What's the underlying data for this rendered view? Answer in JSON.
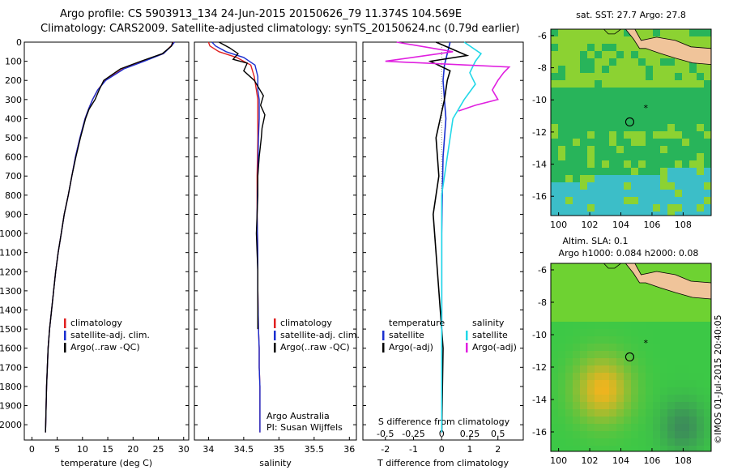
{
  "header": {
    "line1": "Argo profile: CS 5903913_134 24-Jun-2015 20150626_79 11.374S 104.569E",
    "line2": "Climatology: CARS2009. Satellite-adjusted climatology: synTS_20150624.nc (0.79d earlier)"
  },
  "colors": {
    "climatology": "#e02020",
    "satellite": "#1a2fd0",
    "argo": "#000000",
    "sal_satellite": "#22d8e8",
    "sal_argo": "#e020e0",
    "land": "#f0c49a",
    "sea_green": "#22b84a"
  },
  "credits": {
    "argo_aus": "Argo Australia",
    "pi": "PI: Susan Wijffels",
    "imos": "©IMOS 01-Jul-2015 20:40:05"
  },
  "chart_data": [
    {
      "type": "line",
      "xlabel": "temperature (deg C)",
      "ylabel": "",
      "xlim": [
        -1.5,
        31
      ],
      "ylim": [
        2080,
        0
      ],
      "xticks": [
        "0",
        "5",
        "10",
        "15",
        "20",
        "25",
        "30"
      ],
      "yticks": [
        "0",
        "100",
        "200",
        "300",
        "400",
        "500",
        "600",
        "700",
        "800",
        "900",
        "1000",
        "1100",
        "1200",
        "1300",
        "1400",
        "1500",
        "1600",
        "1700",
        "1800",
        "1900",
        "2000"
      ],
      "legend": [
        "climatology",
        "satellite-adj. clim.",
        "Argo(..raw -QC)"
      ],
      "series": [
        {
          "name": "climatology",
          "x": [
            28,
            27.5,
            26,
            22,
            18,
            14.5,
            13,
            12,
            11.2,
            10.5,
            9.5,
            8.6,
            7.9,
            7.2,
            6.4,
            5.8,
            5.2,
            4.7,
            4.3,
            3.9,
            3.5,
            3.2,
            2.9,
            2.7
          ],
          "y": [
            0,
            20,
            60,
            100,
            140,
            200,
            250,
            300,
            350,
            400,
            500,
            600,
            700,
            800,
            900,
            1000,
            1100,
            1200,
            1300,
            1400,
            1500,
            1600,
            1800,
            2040
          ]
        },
        {
          "name": "satellite-adj. clim.",
          "x": [
            28.2,
            27.6,
            26,
            22.2,
            18.2,
            14.6,
            13,
            12,
            11.2,
            10.5,
            9.5,
            8.6,
            7.9,
            7.2,
            6.4,
            5.8,
            5.2,
            4.7,
            4.3,
            3.9,
            3.5,
            3.2,
            2.9,
            2.7
          ],
          "y": [
            0,
            20,
            60,
            100,
            140,
            200,
            250,
            300,
            350,
            400,
            500,
            600,
            700,
            800,
            900,
            1000,
            1100,
            1200,
            1300,
            1400,
            1500,
            1600,
            1800,
            2040
          ]
        },
        {
          "name": "Argo(..raw -QC)",
          "x": [
            27.8,
            27.6,
            25.8,
            21.5,
            17.5,
            14.2,
            13.3,
            12.5,
            11.3,
            10.6,
            9.6,
            8.7,
            7.9,
            7.2,
            6.4,
            5.8,
            5.2,
            4.7,
            4.3,
            3.9,
            3.5,
            3.2,
            2.9,
            2.7
          ],
          "y": [
            0,
            20,
            60,
            100,
            140,
            200,
            250,
            300,
            350,
            400,
            500,
            600,
            700,
            800,
            900,
            1000,
            1100,
            1200,
            1300,
            1400,
            1500,
            1600,
            1800,
            2040
          ]
        }
      ]
    },
    {
      "type": "line",
      "xlabel": "salinity",
      "xlim": [
        33.8,
        36.1
      ],
      "ylim": [
        2080,
        0
      ],
      "xticks": [
        "34",
        "34.5",
        "35",
        "35.5",
        "36"
      ],
      "legend": [
        "climatology",
        "satellite-adj. clim.",
        "Argo(..raw -QC)"
      ],
      "series": [
        {
          "name": "climatology",
          "x": [
            34.0,
            34.02,
            34.15,
            34.4,
            34.6,
            34.65,
            34.68,
            34.7,
            34.7,
            34.7,
            34.69,
            34.69,
            34.7,
            34.7,
            34.71,
            34.72,
            34.72,
            34.73,
            34.73,
            34.73
          ],
          "y": [
            0,
            20,
            50,
            80,
            120,
            180,
            250,
            300,
            400,
            500,
            700,
            900,
            1100,
            1300,
            1500,
            1600,
            1700,
            1800,
            1900,
            2040
          ]
        },
        {
          "name": "satellite-adj. clim.",
          "x": [
            34.05,
            34.1,
            34.25,
            34.5,
            34.66,
            34.7,
            34.7,
            34.72,
            34.72,
            34.71,
            34.7,
            34.69,
            34.7,
            34.7,
            34.71,
            34.72,
            34.72,
            34.73,
            34.73,
            34.73
          ],
          "y": [
            0,
            20,
            50,
            80,
            120,
            180,
            250,
            300,
            400,
            500,
            700,
            900,
            1100,
            1300,
            1500,
            1600,
            1700,
            1800,
            1900,
            2040
          ]
        },
        {
          "name": "Argo(..raw -QC)",
          "x": [
            34.15,
            34.3,
            34.42,
            34.35,
            34.55,
            34.5,
            34.65,
            34.78,
            34.74,
            34.8,
            34.76,
            34.75,
            34.72,
            34.7,
            34.7,
            34.68,
            34.7,
            34.7
          ],
          "y": [
            0,
            30,
            60,
            90,
            110,
            150,
            200,
            280,
            330,
            380,
            450,
            500,
            600,
            700,
            800,
            1000,
            1200,
            1500
          ]
        }
      ]
    },
    {
      "type": "line",
      "xlabel": "T difference from climatology",
      "xlabel_top": "S difference from climatology",
      "xlim": [
        -2.8,
        2.9
      ],
      "ylim": [
        2080,
        0
      ],
      "xticks": [
        "-2",
        "-1",
        "0",
        "1",
        "2"
      ],
      "xticks_top": [
        "-0.5",
        "-0.25",
        "0",
        "0.25",
        "0.5"
      ],
      "legend_left_title": "temperature",
      "legend_right_title": "salinity",
      "legend": [
        "satellite",
        "Argo(-adj)",
        "satellite",
        "Argo(-adj)"
      ],
      "series": [
        {
          "name": "satellite",
          "x": [
            0.3,
            0.2,
            0.1,
            0.05,
            0.1,
            0.15,
            0.05,
            0.02,
            0.0,
            0.0,
            0.0,
            0.0
          ],
          "y": [
            0,
            60,
            120,
            200,
            300,
            400,
            600,
            800,
            1000,
            1400,
            1800,
            2040
          ]
        },
        {
          "name": "Argo(-adj)",
          "x": [
            -0.2,
            0.9,
            -0.4,
            0.3,
            0.2,
            0.1,
            -0.2,
            -0.1,
            -0.3,
            -0.2,
            -0.1,
            0.05,
            0.0
          ],
          "y": [
            0,
            70,
            100,
            150,
            200,
            300,
            500,
            700,
            900,
            1100,
            1300,
            1600,
            2040
          ]
        },
        {
          "name": "satellite",
          "x": [
            0.2,
            0.35,
            0.3,
            0.25,
            0.3,
            0.2,
            0.1,
            0.05,
            0.0,
            0.0,
            0.0,
            0.0
          ],
          "y": [
            0,
            60,
            100,
            160,
            220,
            300,
            400,
            600,
            800,
            1200,
            1600,
            2040
          ]
        },
        {
          "name": "Argo(-adj)",
          "x": [
            -0.4,
            0.1,
            -0.5,
            0.6,
            0.55,
            0.5,
            0.45,
            0.5,
            0.3,
            0.15
          ],
          "y": [
            0,
            50,
            100,
            130,
            160,
            200,
            250,
            300,
            330,
            360
          ]
        }
      ]
    },
    {
      "type": "heatmap",
      "title": "sat. SST: 27.7 Argo: 27.8",
      "xlim": [
        99.5,
        109.8
      ],
      "ylim": [
        -17.2,
        -5.6
      ],
      "xticks": [
        "100",
        "102",
        "104",
        "106",
        "108"
      ],
      "yticks": [
        "-6",
        "-8",
        "-10",
        "-12",
        "-14",
        "-16"
      ],
      "float_position": {
        "lon": 104.569,
        "lat": -11.374
      }
    },
    {
      "type": "heatmap",
      "title": "Altim. SLA: 0.1",
      "subtitle": "Argo h1000: 0.084 h2000: 0.08",
      "xlim": [
        99.5,
        109.8
      ],
      "ylim": [
        -17.2,
        -5.6
      ],
      "xticks": [
        "100",
        "102",
        "104",
        "106",
        "108"
      ],
      "yticks": [
        "-6",
        "-8",
        "-10",
        "-12",
        "-14",
        "-16"
      ],
      "float_position": {
        "lon": 104.569,
        "lat": -11.374
      }
    }
  ]
}
